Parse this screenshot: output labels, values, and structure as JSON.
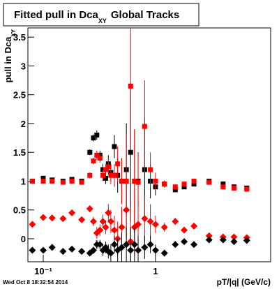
{
  "chart_data": {
    "type": "scatter",
    "title": "Fitted pull in Dca",
    "title_subscript": "XY",
    "title_suffix": "Global Tracks",
    "y_label": "pull in Dca",
    "y_label_subscript": "XY",
    "x_label": "pT/|q| (GeV/c)",
    "timestamp": "Wed Oct  8 18:32:54 2014",
    "x_log": true,
    "xlim": [
      0.073,
      10.6
    ],
    "ylim": [
      -0.4,
      3.66
    ],
    "xticks": [
      {
        "value": 0.1,
        "label": "10⁻¹"
      },
      1
    ],
    "yticks": [
      0,
      0.5,
      1,
      1.5,
      2,
      2.5,
      3,
      3.5
    ],
    "x": [
      0.08,
      0.1,
      0.12,
      0.15,
      0.18,
      0.22,
      0.26,
      0.28,
      0.3,
      0.32,
      0.34,
      0.36,
      0.38,
      0.4,
      0.43,
      0.46,
      0.5,
      0.55,
      0.6,
      0.65,
      0.7,
      0.8,
      0.9,
      1.0,
      1.2,
      1.5,
      1.8,
      2.2,
      3.0,
      4.0,
      5.0,
      6.5
    ],
    "series": [
      {
        "color": "#000000",
        "marker": "square",
        "values": [
          1.0,
          1.05,
          1.02,
          1.0,
          1.03,
          1.0,
          1.5,
          1.75,
          1.8,
          1.45,
          1.2,
          1.05,
          1.3,
          1.15,
          1.6,
          1.1,
          1.0,
          1.2,
          1.5,
          1.0,
          1.0,
          1.2,
          1.0,
          0.9,
          0.95,
          0.85,
          0.9,
          0.95,
          1.0,
          0.95,
          0.9,
          0.88
        ],
        "errors": [
          0.03,
          0.03,
          0.03,
          0.03,
          0.03,
          0.04,
          0.05,
          0.06,
          0.08,
          0.08,
          0.1,
          0.1,
          0.15,
          0.15,
          0.2,
          0.3,
          0.4,
          0.8,
          1.2,
          0.9,
          0.5,
          0.9,
          0.3,
          0.15,
          0.06,
          0.04,
          0.04,
          0.03,
          0.03,
          0.03,
          0.03,
          0.03
        ]
      },
      {
        "color": "#ff0000",
        "marker": "square",
        "values": [
          1.0,
          1.0,
          1.0,
          0.98,
          1.0,
          0.98,
          1.1,
          1.35,
          1.45,
          1.4,
          1.1,
          1.2,
          1.25,
          1.1,
          1.1,
          1.3,
          1.0,
          1.0,
          2.65,
          1.0,
          0.98,
          1.95,
          1.2,
          1.0,
          0.95,
          0.9,
          0.95,
          1.0,
          0.98,
          0.9,
          0.88,
          0.86
        ],
        "errors": [
          0.03,
          0.03,
          0.03,
          0.03,
          0.03,
          0.04,
          0.05,
          0.06,
          0.08,
          0.08,
          0.1,
          0.1,
          0.15,
          0.15,
          0.2,
          0.3,
          0.4,
          0.8,
          1.1,
          0.9,
          0.5,
          0.8,
          0.3,
          0.15,
          0.06,
          0.04,
          0.04,
          0.03,
          0.03,
          0.03,
          0.03,
          0.03
        ]
      },
      {
        "color": "#ff0000",
        "marker": "diamond",
        "values": [
          0.25,
          0.37,
          0.36,
          0.35,
          0.45,
          0.33,
          0.52,
          0.3,
          0.1,
          0.15,
          0.3,
          0.2,
          0.45,
          0.3,
          0.15,
          0.0,
          0.2,
          0.5,
          -0.05,
          0.2,
          0.25,
          0.35,
          0.3,
          0.25,
          0.2,
          0.3,
          0.15,
          0.22,
          0.05,
          0.03,
          0.03,
          0.02
        ],
        "errors": [
          0.03,
          0.03,
          0.03,
          0.03,
          0.04,
          0.05,
          0.06,
          0.08,
          0.1,
          0.1,
          0.12,
          0.12,
          0.15,
          0.2,
          0.25,
          0.3,
          0.35,
          0.5,
          0.6,
          0.5,
          0.4,
          0.4,
          0.3,
          0.15,
          0.08,
          0.06,
          0.05,
          0.04,
          0.03,
          0.03,
          0.03,
          0.03
        ]
      },
      {
        "color": "#000000",
        "marker": "diamond",
        "values": [
          -0.2,
          -0.2,
          -0.15,
          -0.22,
          -0.18,
          -0.22,
          -0.25,
          -0.2,
          -0.1,
          -0.1,
          -0.2,
          -0.15,
          -0.22,
          -0.25,
          -0.1,
          -0.2,
          -0.15,
          -0.1,
          -0.2,
          -0.1,
          -0.2,
          -0.15,
          -0.1,
          -0.2,
          -0.25,
          -0.1,
          -0.05,
          -0.1,
          -0.02,
          -0.02,
          -0.05,
          -0.03
        ],
        "errors": [
          0.03,
          0.03,
          0.03,
          0.03,
          0.03,
          0.04,
          0.05,
          0.06,
          0.08,
          0.08,
          0.1,
          0.1,
          0.12,
          0.15,
          0.15,
          0.2,
          0.25,
          0.3,
          0.4,
          0.3,
          0.25,
          0.2,
          0.15,
          0.1,
          0.06,
          0.05,
          0.04,
          0.03,
          0.03,
          0.03,
          0.03,
          0.03
        ]
      }
    ]
  }
}
